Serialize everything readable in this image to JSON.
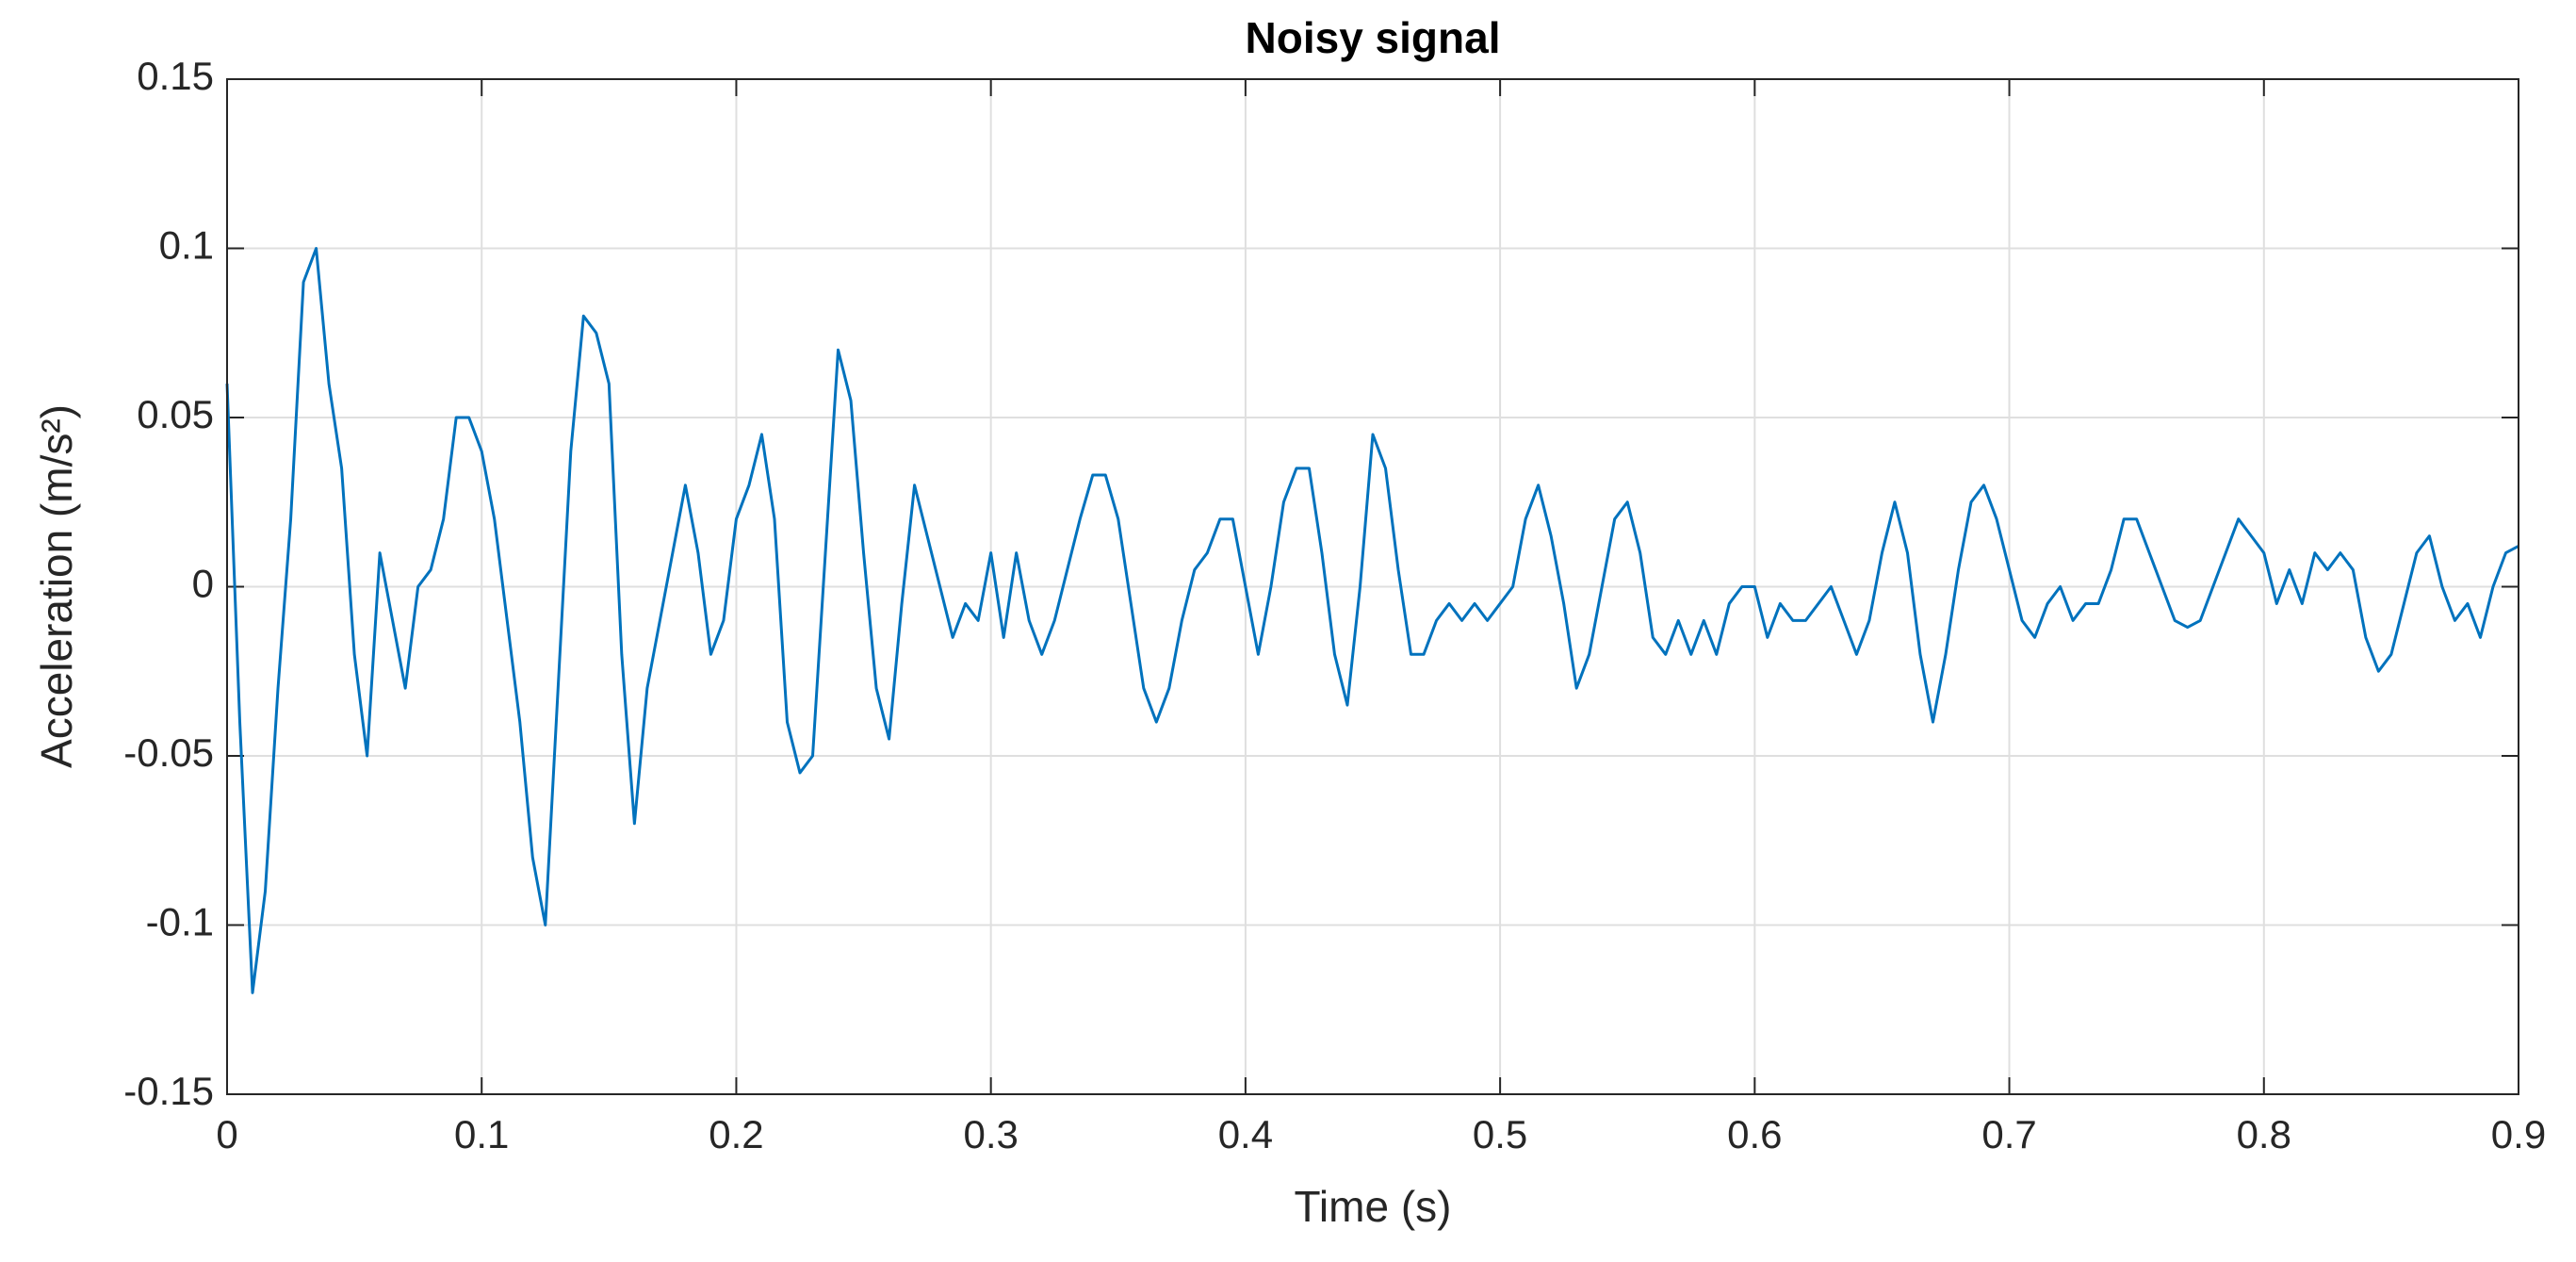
{
  "chart_data": {
    "type": "line",
    "title": "Noisy signal",
    "x_label": "Time (s)",
    "y_label": "Acceleration (m/s²)",
    "color": "#0072bd",
    "grid": true,
    "box": true,
    "xlim": [
      0,
      0.9
    ],
    "xticks": [
      0,
      0.1,
      0.2,
      0.3,
      0.4,
      0.5,
      0.6,
      0.7,
      0.8,
      0.9
    ],
    "ylim": [
      -0.15,
      0.15
    ],
    "yticks": [
      -0.15,
      -0.1,
      -0.05,
      0,
      0.05,
      0.1,
      0.15
    ],
    "x": [
      0,
      0.005,
      0.01,
      0.015,
      0.02,
      0.025,
      0.03,
      0.035,
      0.04,
      0.045,
      0.05,
      0.055,
      0.06,
      0.065,
      0.07,
      0.075,
      0.08,
      0.085,
      0.09,
      0.095,
      0.1,
      0.105,
      0.11,
      0.115,
      0.12,
      0.125,
      0.13,
      0.135,
      0.14,
      0.145,
      0.15,
      0.155,
      0.16,
      0.165,
      0.17,
      0.175,
      0.18,
      0.185,
      0.19,
      0.195,
      0.2,
      0.205,
      0.21,
      0.215,
      0.22,
      0.225,
      0.23,
      0.235,
      0.24,
      0.245,
      0.25,
      0.255,
      0.26,
      0.265,
      0.27,
      0.275,
      0.28,
      0.285,
      0.29,
      0.295,
      0.3,
      0.305,
      0.31,
      0.315,
      0.32,
      0.325,
      0.33,
      0.335,
      0.34,
      0.345,
      0.35,
      0.355,
      0.36,
      0.365,
      0.37,
      0.375,
      0.38,
      0.385,
      0.39,
      0.395,
      0.4,
      0.405,
      0.41,
      0.415,
      0.42,
      0.425,
      0.43,
      0.435,
      0.44,
      0.445,
      0.45,
      0.455,
      0.46,
      0.465,
      0.47,
      0.475,
      0.48,
      0.485,
      0.49,
      0.495,
      0.5,
      0.505,
      0.51,
      0.515,
      0.52,
      0.525,
      0.53,
      0.535,
      0.54,
      0.545,
      0.55,
      0.555,
      0.56,
      0.565,
      0.57,
      0.575,
      0.58,
      0.585,
      0.59,
      0.595,
      0.6,
      0.605,
      0.61,
      0.615,
      0.62,
      0.625,
      0.63,
      0.635,
      0.64,
      0.645,
      0.65,
      0.655,
      0.66,
      0.665,
      0.67,
      0.675,
      0.68,
      0.685,
      0.69,
      0.695,
      0.7,
      0.705,
      0.71,
      0.715,
      0.72,
      0.725,
      0.73,
      0.735,
      0.74,
      0.745,
      0.75,
      0.755,
      0.76,
      0.765,
      0.77,
      0.775,
      0.78,
      0.785,
      0.79,
      0.795,
      0.8,
      0.805,
      0.81,
      0.815,
      0.82,
      0.825,
      0.83,
      0.835,
      0.84,
      0.845,
      0.85,
      0.855,
      0.86,
      0.865,
      0.87,
      0.875,
      0.88,
      0.885,
      0.89,
      0.895,
      0.9
    ],
    "values": [
      0.06,
      -0.04,
      -0.12,
      -0.09,
      -0.03,
      0.02,
      0.09,
      0.1,
      0.06,
      0.035,
      -0.02,
      -0.05,
      0.01,
      -0.01,
      -0.03,
      0,
      0.005,
      0.02,
      0.05,
      0.05,
      0.04,
      0.02,
      -0.01,
      -0.04,
      -0.08,
      -0.1,
      -0.03,
      0.04,
      0.08,
      0.075,
      0.06,
      -0.02,
      -0.07,
      -0.03,
      -0.01,
      0.01,
      0.03,
      0.01,
      -0.02,
      -0.01,
      0.02,
      0.03,
      0.045,
      0.02,
      -0.04,
      -0.055,
      -0.05,
      0.01,
      0.07,
      0.055,
      0.01,
      -0.03,
      -0.045,
      -0.005,
      0.03,
      0.015,
      0,
      -0.015,
      -0.005,
      -0.01,
      0.01,
      -0.015,
      0.01,
      -0.01,
      -0.02,
      -0.01,
      0.005,
      0.02,
      0.033,
      0.033,
      0.02,
      -0.005,
      -0.03,
      -0.04,
      -0.03,
      -0.01,
      0.005,
      0.01,
      0.02,
      0.02,
      0,
      -0.02,
      0,
      0.025,
      0.035,
      0.035,
      0.01,
      -0.02,
      -0.035,
      0,
      0.045,
      0.035,
      0.005,
      -0.02,
      -0.02,
      -0.01,
      -0.005,
      -0.01,
      -0.005,
      -0.01,
      -0.005,
      0,
      0.02,
      0.03,
      0.015,
      -0.005,
      -0.03,
      -0.02,
      0,
      0.02,
      0.025,
      0.01,
      -0.015,
      -0.02,
      -0.01,
      -0.02,
      -0.01,
      -0.02,
      -0.005,
      0,
      0,
      -0.015,
      -0.005,
      -0.01,
      -0.01,
      -0.005,
      0,
      -0.01,
      -0.02,
      -0.01,
      0.01,
      0.025,
      0.01,
      -0.02,
      -0.04,
      -0.02,
      0.005,
      0.025,
      0.03,
      0.02,
      0.005,
      -0.01,
      -0.015,
      -0.005,
      0,
      -0.01,
      -0.005,
      -0.005,
      0.005,
      0.02,
      0.02,
      0.01,
      0,
      -0.01,
      -0.012,
      -0.01,
      0,
      0.01,
      0.02,
      0.015,
      0.01,
      -0.005,
      0.005,
      -0.005,
      0.01,
      0.005,
      0.01,
      0.005,
      -0.015,
      -0.025,
      -0.02,
      -0.005,
      0.01,
      0.015,
      0,
      -0.01,
      -0.005,
      -0.015,
      0,
      0.01,
      0.012
    ]
  }
}
